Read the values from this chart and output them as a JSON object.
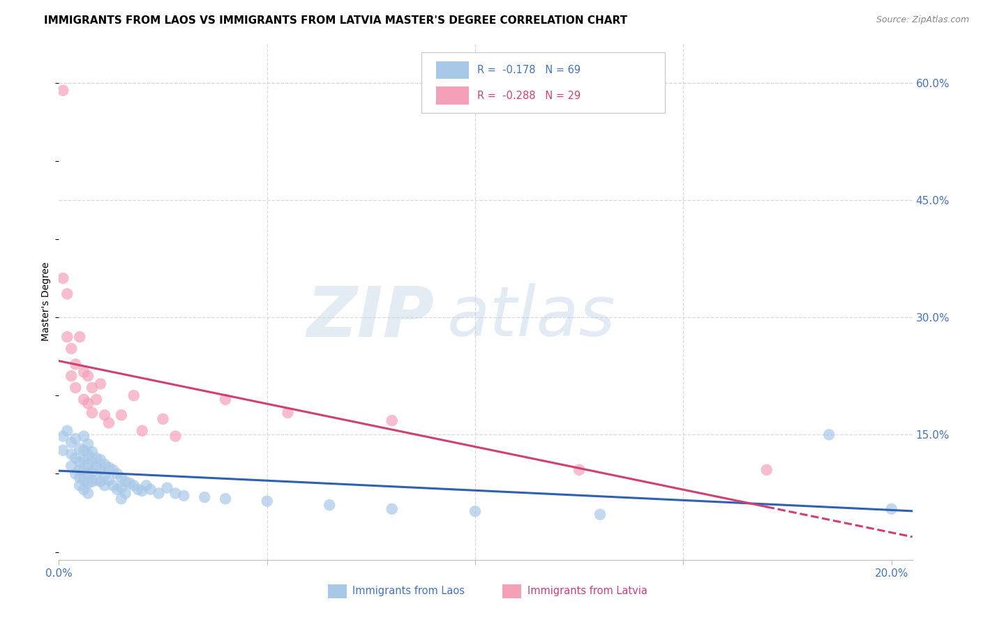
{
  "title": "IMMIGRANTS FROM LAOS VS IMMIGRANTS FROM LATVIA MASTER'S DEGREE CORRELATION CHART",
  "source": "Source: ZipAtlas.com",
  "ylabel": "Master's Degree",
  "legend_laos": "Immigrants from Laos",
  "legend_latvia": "Immigrants from Latvia",
  "R_laos": -0.178,
  "N_laos": 69,
  "R_latvia": -0.288,
  "N_latvia": 29,
  "xlim": [
    0.0,
    0.205
  ],
  "ylim": [
    -0.01,
    0.65
  ],
  "xticks": [
    0.0,
    0.05,
    0.1,
    0.15,
    0.2
  ],
  "xtick_labels": [
    "0.0%",
    "",
    "",
    "",
    "20.0%"
  ],
  "yticks_right": [
    0.15,
    0.3,
    0.45,
    0.6
  ],
  "ytick_labels_right": [
    "15.0%",
    "30.0%",
    "45.0%",
    "60.0%"
  ],
  "color_laos": "#a8c8e8",
  "color_latvia": "#f4a0b8",
  "color_trend_laos": "#3060b0",
  "color_trend_latvia": "#d04070",
  "laos_x": [
    0.001,
    0.001,
    0.002,
    0.003,
    0.003,
    0.003,
    0.004,
    0.004,
    0.004,
    0.005,
    0.005,
    0.005,
    0.005,
    0.005,
    0.006,
    0.006,
    0.006,
    0.006,
    0.006,
    0.006,
    0.007,
    0.007,
    0.007,
    0.007,
    0.007,
    0.007,
    0.008,
    0.008,
    0.008,
    0.008,
    0.009,
    0.009,
    0.009,
    0.01,
    0.01,
    0.01,
    0.011,
    0.011,
    0.011,
    0.012,
    0.012,
    0.013,
    0.013,
    0.014,
    0.014,
    0.015,
    0.015,
    0.015,
    0.016,
    0.016,
    0.017,
    0.018,
    0.019,
    0.02,
    0.021,
    0.022,
    0.024,
    0.026,
    0.028,
    0.03,
    0.035,
    0.04,
    0.05,
    0.065,
    0.08,
    0.1,
    0.13,
    0.185,
    0.2
  ],
  "laos_y": [
    0.148,
    0.13,
    0.155,
    0.14,
    0.125,
    0.11,
    0.145,
    0.12,
    0.1,
    0.132,
    0.115,
    0.105,
    0.095,
    0.085,
    0.148,
    0.13,
    0.118,
    0.105,
    0.092,
    0.08,
    0.138,
    0.125,
    0.112,
    0.1,
    0.088,
    0.075,
    0.128,
    0.115,
    0.102,
    0.09,
    0.12,
    0.108,
    0.092,
    0.118,
    0.105,
    0.09,
    0.112,
    0.098,
    0.085,
    0.108,
    0.092,
    0.105,
    0.085,
    0.1,
    0.08,
    0.095,
    0.082,
    0.068,
    0.09,
    0.075,
    0.088,
    0.085,
    0.08,
    0.078,
    0.085,
    0.08,
    0.075,
    0.082,
    0.075,
    0.072,
    0.07,
    0.068,
    0.065,
    0.06,
    0.055,
    0.052,
    0.048,
    0.15,
    0.055
  ],
  "latvia_x": [
    0.001,
    0.001,
    0.002,
    0.002,
    0.003,
    0.003,
    0.004,
    0.004,
    0.005,
    0.006,
    0.006,
    0.007,
    0.007,
    0.008,
    0.008,
    0.009,
    0.01,
    0.011,
    0.012,
    0.015,
    0.018,
    0.02,
    0.025,
    0.028,
    0.04,
    0.055,
    0.08,
    0.125,
    0.17
  ],
  "latvia_y": [
    0.59,
    0.35,
    0.33,
    0.275,
    0.26,
    0.225,
    0.24,
    0.21,
    0.275,
    0.23,
    0.195,
    0.225,
    0.19,
    0.21,
    0.178,
    0.195,
    0.215,
    0.175,
    0.165,
    0.175,
    0.2,
    0.155,
    0.17,
    0.148,
    0.195,
    0.178,
    0.168,
    0.105,
    0.105
  ],
  "title_fontsize": 11,
  "tick_fontsize": 11,
  "source_fontsize": 9,
  "ylabel_fontsize": 10
}
